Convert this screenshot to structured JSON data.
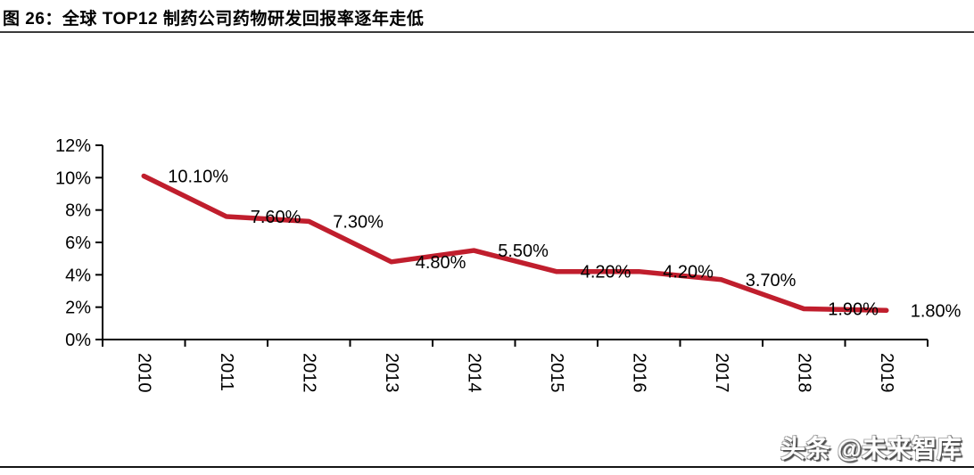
{
  "title": "图 26：全球 TOP12 制药公司药物研发回报率逐年走低",
  "watermark": "头条 @未来智库",
  "colors": {
    "line": "#C01E2D",
    "axis": "#000000",
    "label_text": "#000000",
    "title_rule": "#3a3a3a",
    "bottom_rule": "#141414"
  },
  "chart_data": {
    "type": "line",
    "categories": [
      "2010",
      "2011",
      "2012",
      "2013",
      "2014",
      "2015",
      "2016",
      "2017",
      "2018",
      "2019"
    ],
    "values": [
      10.1,
      7.6,
      7.3,
      4.8,
      5.5,
      4.2,
      4.2,
      3.7,
      1.9,
      1.8
    ],
    "data_labels": [
      "10.10%",
      "7.60%",
      "7.30%",
      "4.80%",
      "5.50%",
      "4.20%",
      "4.20%",
      "3.70%",
      "1.90%",
      "1.80%"
    ],
    "title": "",
    "xlabel": "",
    "ylabel": "",
    "ylim": [
      0,
      12
    ],
    "y_ticks": [
      0,
      2,
      4,
      6,
      8,
      10,
      12
    ],
    "y_tick_labels": [
      "0%",
      "2%",
      "4%",
      "6%",
      "8%",
      "10%",
      "12%"
    ],
    "grid": false,
    "legend": "none",
    "x_label_rotation": 90,
    "data_label_position": "right"
  }
}
